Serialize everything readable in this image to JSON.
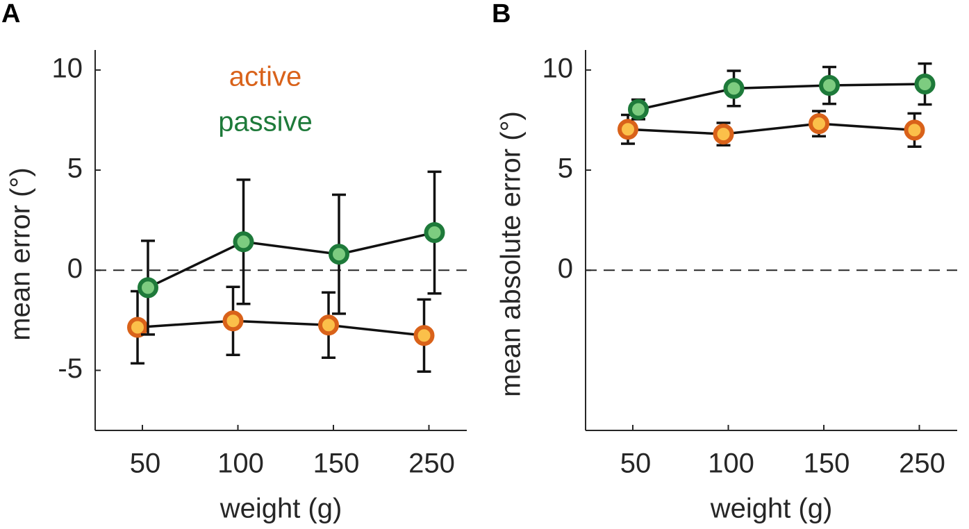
{
  "chart_data": [
    {
      "type": "errorbar",
      "panel": "A",
      "ylabel": "mean error (°)",
      "xlabel": "weight (g)",
      "categories": [
        "50",
        "100",
        "150",
        "250"
      ],
      "ylim": [
        -8,
        11
      ],
      "yticks": [
        -5,
        0,
        5,
        10
      ],
      "reference_line": 0,
      "legend": true,
      "series": [
        {
          "name": "active",
          "color": "#d9621a",
          "fill": "#fbc04a",
          "values": [
            -2.85,
            -2.53,
            -2.74,
            -3.26
          ],
          "error": [
            1.8,
            1.7,
            1.63,
            1.8
          ]
        },
        {
          "name": "passive",
          "color": "#1e7a3a",
          "fill": "#7dcc80",
          "values": [
            -0.87,
            1.42,
            0.8,
            1.88
          ],
          "error": [
            2.34,
            3.1,
            2.97,
            3.04
          ]
        }
      ]
    },
    {
      "type": "errorbar",
      "panel": "B",
      "ylabel": "mean absolute error (°)",
      "xlabel": "weight (g)",
      "categories": [
        "50",
        "100",
        "150",
        "250"
      ],
      "ylim": [
        -8,
        11
      ],
      "yticks": [
        0,
        5,
        10
      ],
      "reference_line": 0,
      "legend": false,
      "series": [
        {
          "color": "#d9621a",
          "fill": "#fbc04a",
          "values": [
            7.04,
            6.8,
            7.32,
            7.0
          ],
          "error": [
            0.72,
            0.56,
            0.63,
            0.83
          ]
        },
        {
          "color": "#1e7a3a",
          "fill": "#7dcc80",
          "values": [
            8.03,
            9.08,
            9.23,
            9.3
          ],
          "error": [
            0.49,
            0.88,
            0.92,
            1.02
          ]
        }
      ]
    }
  ]
}
